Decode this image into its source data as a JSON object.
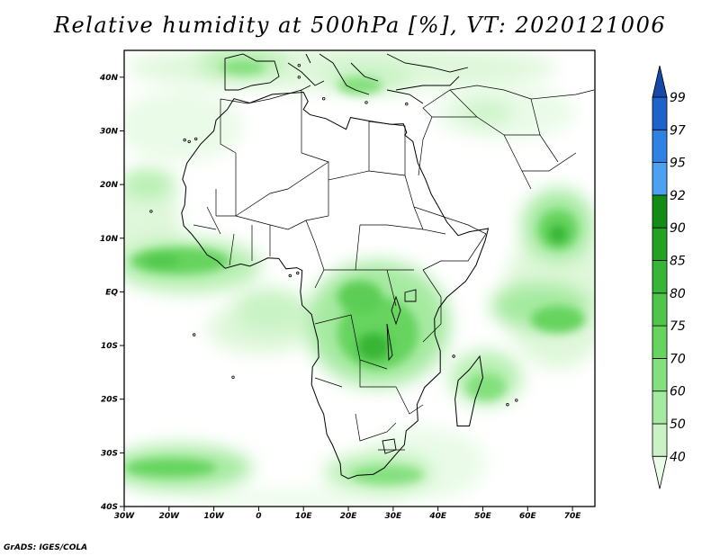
{
  "title": "Relative humidity at 500hPa [%], VT: 2020121006",
  "credit": "GrADS: IGES/COLA",
  "map_extent": {
    "lon": [
      -30,
      75
    ],
    "lat": [
      -40,
      45
    ]
  },
  "lat_ticks": [
    {
      "lat": 40,
      "label": "40N"
    },
    {
      "lat": 30,
      "label": "30N"
    },
    {
      "lat": 20,
      "label": "20N"
    },
    {
      "lat": 10,
      "label": "10N"
    },
    {
      "lat": 0,
      "label": "EQ"
    },
    {
      "lat": -10,
      "label": "10S"
    },
    {
      "lat": -20,
      "label": "20S"
    },
    {
      "lat": -30,
      "label": "30S"
    },
    {
      "lat": -40,
      "label": "40S"
    }
  ],
  "lon_ticks": [
    {
      "lon": -30,
      "label": "30W"
    },
    {
      "lon": -20,
      "label": "20W"
    },
    {
      "lon": -10,
      "label": "10W"
    },
    {
      "lon": 0,
      "label": "0"
    },
    {
      "lon": 10,
      "label": "10E"
    },
    {
      "lon": 20,
      "label": "20E"
    },
    {
      "lon": 30,
      "label": "30E"
    },
    {
      "lon": 40,
      "label": "40E"
    },
    {
      "lon": 50,
      "label": "50E"
    },
    {
      "lon": 60,
      "label": "60E"
    },
    {
      "lon": 70,
      "label": "70E"
    }
  ],
  "colorbar": {
    "levels": [
      "40",
      "50",
      "60",
      "70",
      "75",
      "80",
      "85",
      "90",
      "92",
      "95",
      "97",
      "99"
    ],
    "colors": [
      "#eafbe8",
      "#c9f3c5",
      "#a5eaa0",
      "#84e07e",
      "#66d45f",
      "#4ec64a",
      "#37b536",
      "#22a123",
      "#128c15",
      "#4aa2f0",
      "#2f81e3",
      "#1e63cc",
      "#1449a8"
    ]
  },
  "coastline": [
    [
      -17,
      21
    ],
    [
      -16,
      24
    ],
    [
      -13,
      27.5
    ],
    [
      -10,
      30
    ],
    [
      -9.5,
      32
    ],
    [
      -7,
      34
    ],
    [
      -5.5,
      36
    ],
    [
      -2,
      35.2
    ],
    [
      3,
      36.8
    ],
    [
      10,
      37.2
    ],
    [
      11,
      35.5
    ],
    [
      10,
      34
    ],
    [
      11.5,
      33
    ],
    [
      15,
      32.3
    ],
    [
      19.5,
      30.3
    ],
    [
      20.5,
      32.5
    ],
    [
      25,
      31.8
    ],
    [
      29.5,
      31.2
    ],
    [
      32.3,
      31.3
    ],
    [
      33,
      29.7
    ],
    [
      32.6,
      29.2
    ],
    [
      34.4,
      28
    ],
    [
      35.5,
      24
    ],
    [
      37.2,
      21
    ],
    [
      38.5,
      18.2
    ],
    [
      40,
      16
    ],
    [
      42,
      13
    ],
    [
      43.3,
      11.7
    ],
    [
      44.5,
      10.5
    ],
    [
      47,
      11.2
    ],
    [
      51.2,
      11.8
    ],
    [
      50.5,
      9.5
    ],
    [
      48.5,
      5
    ],
    [
      46.2,
      2
    ],
    [
      42,
      -1
    ],
    [
      40.2,
      -3
    ],
    [
      39.2,
      -5
    ],
    [
      39.3,
      -8
    ],
    [
      40.5,
      -11
    ],
    [
      40.5,
      -15
    ],
    [
      37,
      -17.8
    ],
    [
      35.3,
      -21
    ],
    [
      35.5,
      -24
    ],
    [
      32.9,
      -25.9
    ],
    [
      32.5,
      -28.5
    ],
    [
      31,
      -29.9
    ],
    [
      28,
      -32.8
    ],
    [
      25.6,
      -34
    ],
    [
      22,
      -34.2
    ],
    [
      20,
      -34.8
    ],
    [
      18.4,
      -34.1
    ],
    [
      18.2,
      -32
    ],
    [
      16.5,
      -28.6
    ],
    [
      15.2,
      -26.5
    ],
    [
      14.5,
      -22.8
    ],
    [
      13.4,
      -20.9
    ],
    [
      11.8,
      -17.3
    ],
    [
      12,
      -14
    ],
    [
      13.4,
      -12.2
    ],
    [
      13.2,
      -9
    ],
    [
      12.3,
      -6.1
    ],
    [
      11.8,
      -4.2
    ],
    [
      9.7,
      -2.5
    ],
    [
      9.3,
      0
    ],
    [
      9.6,
      2.5
    ],
    [
      9.7,
      4
    ],
    [
      8.5,
      4.5
    ],
    [
      6.1,
      4.3
    ],
    [
      4.5,
      6.2
    ],
    [
      2,
      6.3
    ],
    [
      0,
      5.5
    ],
    [
      -2,
      4.8
    ],
    [
      -4,
      5.2
    ],
    [
      -7.5,
      4.4
    ],
    [
      -9.3,
      5.8
    ],
    [
      -11.5,
      6.9
    ],
    [
      -13.3,
      9
    ],
    [
      -15,
      10.8
    ],
    [
      -16.7,
      12.3
    ],
    [
      -17.2,
      14.7
    ],
    [
      -16.5,
      16.2
    ],
    [
      -16.2,
      19.5
    ],
    [
      -17,
      21
    ]
  ],
  "madagascar": [
    [
      44.3,
      -25
    ],
    [
      47,
      -25
    ],
    [
      48.3,
      -20
    ],
    [
      50,
      -16
    ],
    [
      49.3,
      -12
    ],
    [
      47,
      -14.5
    ],
    [
      44.5,
      -16.5
    ],
    [
      43.8,
      -20
    ],
    [
      44.3,
      -25
    ]
  ]
}
